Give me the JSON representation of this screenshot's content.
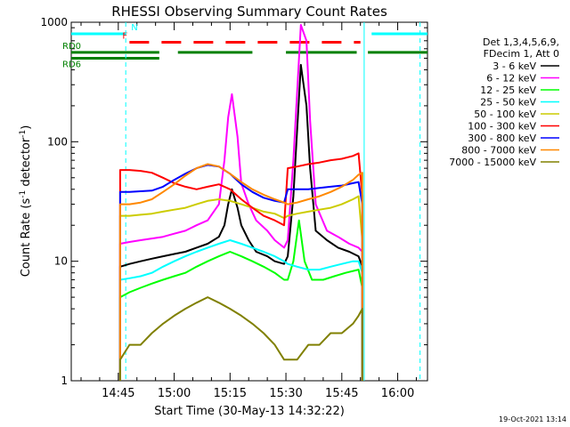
{
  "chart_data": {
    "type": "line",
    "title": "RHESSI Observing Summary Count Rates",
    "xlabel": "Start Time (30-May-13 14:32:22)",
    "ylabel_parts": [
      "Count Rate (s",
      "-1",
      " detector",
      "-1",
      ")"
    ],
    "yscale": "log",
    "ylim": [
      1,
      1000
    ],
    "y_ticks": [
      1,
      10,
      100,
      1000
    ],
    "y_tick_labels": [
      "1",
      "10",
      "100",
      "1000"
    ],
    "xlim_minutes": [
      872.37,
      968.0
    ],
    "x_ticks": [
      885,
      900,
      915,
      930,
      945,
      960
    ],
    "x_tick_labels": [
      "14:45",
      "15:00",
      "15:15",
      "15:30",
      "15:45",
      "16:00"
    ],
    "grid": false,
    "legend": {
      "placement": "right",
      "header": [
        "Det 1,3,4,5,6,9,",
        "FDecim 1, Att 0"
      ]
    },
    "series": [
      {
        "name": "3 - 6 keV",
        "color": "#000000",
        "x": [
          885.5,
          888,
          891,
          894,
          897,
          900,
          903,
          906,
          909,
          912,
          913.5,
          914.5,
          915.5,
          917,
          918,
          920,
          922,
          925,
          927,
          929.5,
          930.5,
          932,
          934,
          935.5,
          936.5,
          938,
          941,
          944,
          947,
          949.5,
          950.5
        ],
        "y": [
          9,
          9.5,
          10,
          10.5,
          11,
          11.5,
          12,
          13,
          14,
          16,
          20,
          30,
          40,
          28,
          20,
          15,
          12,
          11,
          10,
          9.5,
          11,
          35,
          440,
          200,
          60,
          18,
          15,
          13,
          12,
          11,
          9
        ]
      },
      {
        "name": "6 - 12 keV",
        "color": "#ff00ff",
        "x": [
          885.5,
          888,
          891,
          894,
          897,
          900,
          903,
          906,
          909,
          912,
          913.5,
          914.5,
          915.5,
          917,
          918,
          920,
          922,
          925,
          927,
          929.5,
          930.5,
          932,
          934,
          935.5,
          936.5,
          938,
          941,
          944,
          947,
          949.5,
          950.5
        ],
        "y": [
          14,
          14.5,
          15,
          15.5,
          16,
          17,
          18,
          20,
          22,
          30,
          70,
          160,
          250,
          110,
          45,
          30,
          22,
          18,
          15,
          13,
          15,
          70,
          950,
          700,
          150,
          30,
          18,
          16,
          14,
          13,
          12
        ]
      },
      {
        "name": "12 - 25 keV",
        "color": "#00ff00",
        "x": [
          885.5,
          888,
          891,
          894,
          897,
          900,
          903,
          906,
          909,
          912,
          915,
          918,
          921,
          924,
          927,
          929.5,
          930.5,
          932,
          933.5,
          935,
          937,
          940,
          943,
          946,
          949.5,
          950.5
        ],
        "y": [
          5,
          5.5,
          6,
          6.5,
          7,
          7.5,
          8,
          9,
          10,
          11,
          12,
          11,
          10,
          9,
          8,
          7,
          7,
          10,
          22,
          10,
          7,
          7,
          7.5,
          8,
          8.5,
          6
        ]
      },
      {
        "name": "25 - 50 keV",
        "color": "#00ffff",
        "x": [
          885.5,
          888,
          891,
          894,
          897,
          900,
          903,
          906,
          909,
          912,
          915,
          918,
          921,
          924,
          927,
          929.5,
          930.5,
          933,
          936,
          939,
          942,
          945,
          948,
          949.5,
          950.5
        ],
        "y": [
          7,
          7.2,
          7.5,
          8,
          9,
          10,
          11,
          12,
          13,
          14,
          15,
          14,
          13,
          12,
          11,
          10,
          9.5,
          9,
          8.5,
          8.5,
          9,
          9.5,
          10,
          10,
          8
        ]
      },
      {
        "name": "50 - 100 keV",
        "color": "#cccc00",
        "x": [
          885.5,
          888,
          891,
          894,
          897,
          900,
          903,
          906,
          909,
          912,
          915,
          918,
          921,
          924,
          927,
          929.5,
          930.5,
          933,
          936,
          939,
          942,
          945,
          948,
          949.5,
          950.5
        ],
        "y": [
          24,
          24,
          24.5,
          25,
          26,
          27,
          28,
          30,
          32,
          33,
          32,
          30,
          28,
          26,
          25,
          23,
          24,
          25,
          26,
          27,
          28,
          30,
          33,
          35,
          15
        ]
      },
      {
        "name": "100 - 300 keV",
        "color": "#ff0000",
        "x": [
          885.5,
          888,
          891,
          894,
          897,
          900,
          903,
          906,
          909,
          912,
          915,
          918,
          921,
          924,
          927,
          929.5,
          930.5,
          933,
          936,
          939,
          942,
          945,
          948,
          949.5,
          950.5
        ],
        "y": [
          58,
          58,
          57,
          55,
          50,
          45,
          42,
          40,
          42,
          44,
          40,
          33,
          28,
          24,
          22,
          20,
          60,
          62,
          65,
          67,
          70,
          72,
          76,
          80,
          35
        ]
      },
      {
        "name": "300 - 800 keV",
        "color": "#0000ff",
        "x": [
          885.5,
          888,
          891,
          894,
          897,
          900,
          903,
          906,
          909,
          912,
          915,
          918,
          921,
          924,
          927,
          929.5,
          930.5,
          933,
          936,
          939,
          942,
          945,
          948,
          949.5,
          950.5
        ],
        "y": [
          38,
          38,
          38.5,
          39,
          42,
          48,
          54,
          60,
          64,
          62,
          54,
          44,
          38,
          34,
          32,
          31,
          40,
          40,
          40,
          41,
          42,
          43,
          45,
          46,
          30
        ]
      },
      {
        "name": "800 - 7000 keV",
        "color": "#ff8800",
        "x": [
          885.5,
          888,
          891,
          894,
          897,
          900,
          903,
          906,
          909,
          912,
          915,
          918,
          921,
          924,
          927,
          929.5,
          930.5,
          933,
          936,
          939,
          942,
          945,
          948,
          949.5,
          950.5
        ],
        "y": [
          30,
          30,
          31,
          33,
          38,
          44,
          52,
          60,
          65,
          62,
          54,
          46,
          40,
          36,
          33,
          31,
          30,
          31,
          33,
          35,
          38,
          42,
          48,
          53,
          55
        ]
      },
      {
        "name": "7000 - 15000 keV",
        "color": "#808000",
        "x": [
          885.5,
          888,
          891,
          894,
          897,
          900,
          903,
          906,
          909,
          912,
          915,
          918,
          921,
          924,
          927,
          929.5,
          930.5,
          933,
          936,
          939,
          942,
          945,
          948,
          949.5,
          950.5
        ],
        "y": [
          1.5,
          2,
          2,
          2.5,
          3,
          3.5,
          4,
          4.5,
          5,
          4.5,
          4,
          3.5,
          3,
          2.5,
          2,
          1.5,
          1.5,
          1.5,
          2,
          2,
          2.5,
          2.5,
          3,
          3.5,
          4
        ]
      }
    ],
    "status_bars": [
      {
        "label": "N",
        "color": "#00ffff",
        "style": "solid",
        "y": 800,
        "segments": [
          [
            872.37,
            887
          ]
        ]
      },
      {
        "label": "",
        "color": "#00ffff",
        "style": "solid",
        "y": 800,
        "segments": [
          [
            953,
            968
          ]
        ]
      },
      {
        "label": "F",
        "color": "#ff0000",
        "style": "dashed",
        "y": 680,
        "segments": [
          [
            888,
            950
          ]
        ]
      },
      {
        "label": "RD0",
        "color": "#008000",
        "style": "solid",
        "y": 560,
        "segments": [
          [
            872.37,
            896
          ],
          [
            901,
            921
          ],
          [
            930,
            949
          ],
          [
            952,
            968
          ]
        ]
      },
      {
        "label": "RD6",
        "color": "#008000",
        "style": "solid",
        "y": 500,
        "segments": [
          [
            872.37,
            896
          ]
        ]
      }
    ],
    "vlines": [
      {
        "x": 887,
        "color": "#00ffff",
        "style": "dashed"
      },
      {
        "x": 951,
        "color": "#00ffff",
        "style": "solid"
      },
      {
        "x": 966,
        "color": "#00ffff",
        "style": "dashed"
      }
    ]
  },
  "timestamp": "19-Oct-2021 13:14"
}
